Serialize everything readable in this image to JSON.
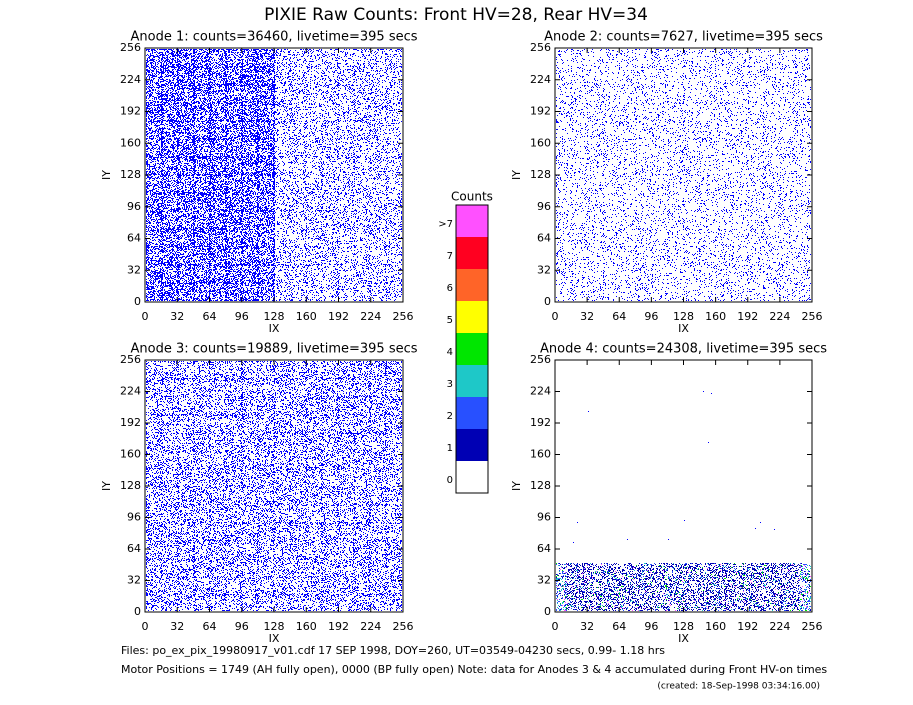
{
  "title": "PIXIE Raw Counts:  Front HV=28, Rear HV=34",
  "chart_data": [
    {
      "type": "image",
      "title": "Anode 1: counts=36460, livetime=395 secs",
      "x_label": "IX",
      "y_label": "IY",
      "xlim": [
        0,
        256
      ],
      "ylim": [
        0,
        256
      ],
      "xticks": [
        0,
        32,
        64,
        96,
        128,
        160,
        192,
        224,
        256
      ],
      "yticks": [
        0,
        32,
        64,
        96,
        128,
        160,
        192,
        224,
        256
      ]
    },
    {
      "type": "image",
      "title": "Anode 2: counts=7627, livetime=395 secs",
      "x_label": "IX",
      "y_label": "IY",
      "xlim": [
        0,
        256
      ],
      "ylim": [
        0,
        256
      ],
      "xticks": [
        0,
        32,
        64,
        96,
        128,
        160,
        192,
        224,
        256
      ],
      "yticks": [
        0,
        32,
        64,
        96,
        128,
        160,
        192,
        224,
        256
      ]
    },
    {
      "type": "image",
      "title": "Anode 3: counts=19889, livetime=395 secs",
      "x_label": "IX",
      "y_label": "IY",
      "xlim": [
        0,
        256
      ],
      "ylim": [
        0,
        256
      ],
      "xticks": [
        0,
        32,
        64,
        96,
        128,
        160,
        192,
        224,
        256
      ],
      "yticks": [
        0,
        32,
        64,
        96,
        128,
        160,
        192,
        224,
        256
      ]
    },
    {
      "type": "image",
      "title": "Anode 4: counts=24308, livetime=395 secs",
      "x_label": "IX",
      "y_label": "IY",
      "xlim": [
        0,
        256
      ],
      "ylim": [
        0,
        256
      ],
      "xticks": [
        0,
        32,
        64,
        96,
        128,
        160,
        192,
        224,
        256
      ],
      "yticks": [
        0,
        32,
        64,
        96,
        128,
        160,
        192,
        224,
        256
      ]
    }
  ],
  "colorbar": {
    "title": "Counts",
    "levels": [
      {
        "label": "0",
        "color": "#ffffff"
      },
      {
        "label": "1",
        "color": "#0000b4"
      },
      {
        "label": "2",
        "color": "#2850ff"
      },
      {
        "label": "3",
        "color": "#1ec8c8"
      },
      {
        "label": "4",
        "color": "#00e600"
      },
      {
        "label": "5",
        "color": "#ffff00"
      },
      {
        "label": "6",
        "color": "#ff6428"
      },
      {
        "label": "7",
        "color": "#ff0020"
      },
      {
        "label": ">7",
        "color": "#ff50ff"
      }
    ]
  },
  "footer": {
    "files": "Files: po_ex_pix_19980917_v01.cdf    17 SEP 1998, DOY=260, UT=03549-04230 secs,  0.99- 1.18 hrs",
    "motor": "Motor Positions = 1749 (AH fully open), 0000 (BP fully open)    Note: data for Anodes 3 & 4 accumulated during Front HV-on times",
    "created": "(created: 18-Sep-1998 03:34:16.00)"
  }
}
